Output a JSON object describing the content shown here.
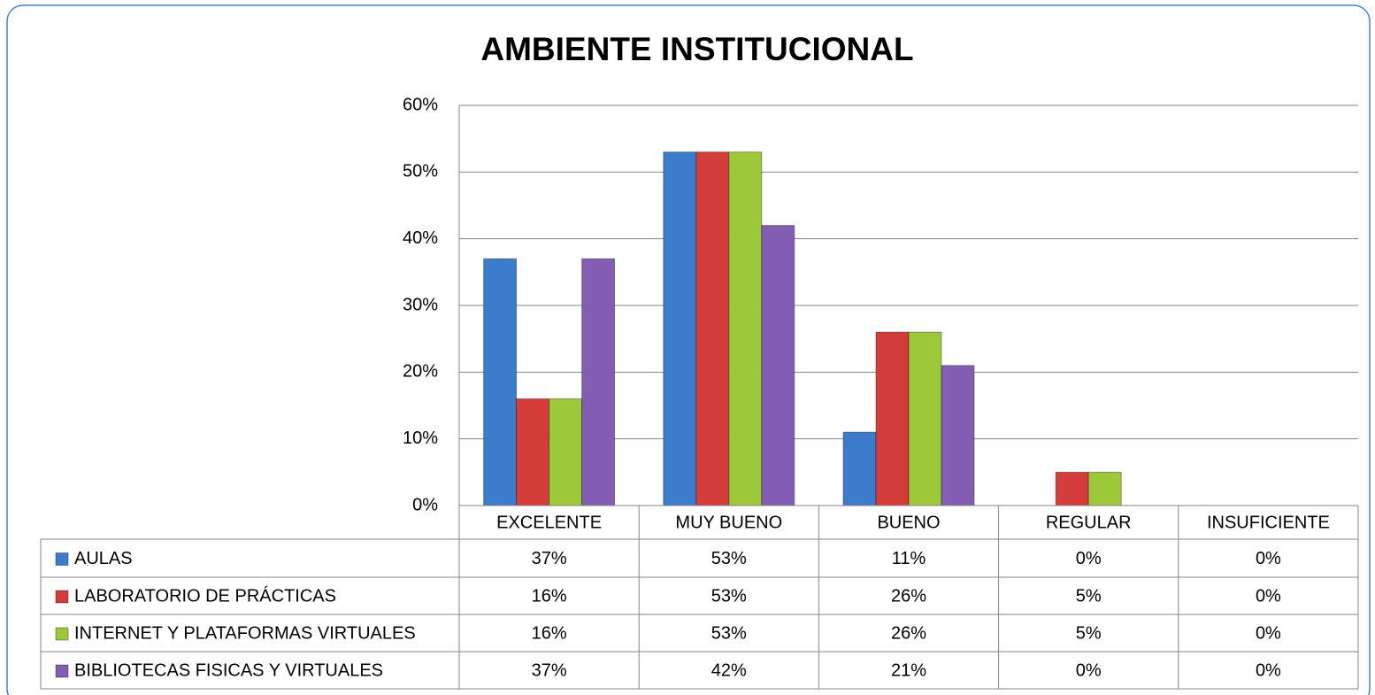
{
  "chart_data": {
    "type": "bar",
    "title": "AMBIENTE INSTITUCIONAL",
    "categories": [
      "EXCELENTE",
      "MUY BUENO",
      "BUENO",
      "REGULAR",
      "INSUFICIENTE"
    ],
    "series": [
      {
        "name": "AULAS",
        "color": "#3d7ccc",
        "values": [
          37,
          53,
          11,
          0,
          0
        ],
        "value_labels": [
          "37%",
          "53%",
          "11%",
          "0%",
          "0%"
        ]
      },
      {
        "name": "LABORATORIO DE PRÁCTICAS",
        "color": "#d43c3a",
        "values": [
          16,
          53,
          26,
          5,
          0
        ],
        "value_labels": [
          "16%",
          "53%",
          "26%",
          "5%",
          "0%"
        ]
      },
      {
        "name": "INTERNET Y PLATAFORMAS VIRTUALES",
        "color": "#9cc83a",
        "values": [
          16,
          53,
          26,
          5,
          0
        ],
        "value_labels": [
          "16%",
          "53%",
          "26%",
          "5%",
          "0%"
        ]
      },
      {
        "name": "BIBLIOTECAS FISICAS Y VIRTUALES",
        "color": "#835cb4",
        "values": [
          37,
          42,
          21,
          0,
          0
        ],
        "value_labels": [
          "37%",
          "42%",
          "21%",
          "0%",
          "0%"
        ]
      }
    ],
    "ylim": [
      0,
      60
    ],
    "yticks": [
      {
        "value": 0,
        "label": "0%"
      },
      {
        "value": 10,
        "label": "10%"
      },
      {
        "value": 20,
        "label": "20%"
      },
      {
        "value": 30,
        "label": "30%"
      },
      {
        "value": 40,
        "label": "40%"
      },
      {
        "value": 50,
        "label": "50%"
      },
      {
        "value": 60,
        "label": "60%"
      }
    ],
    "grid": true
  }
}
